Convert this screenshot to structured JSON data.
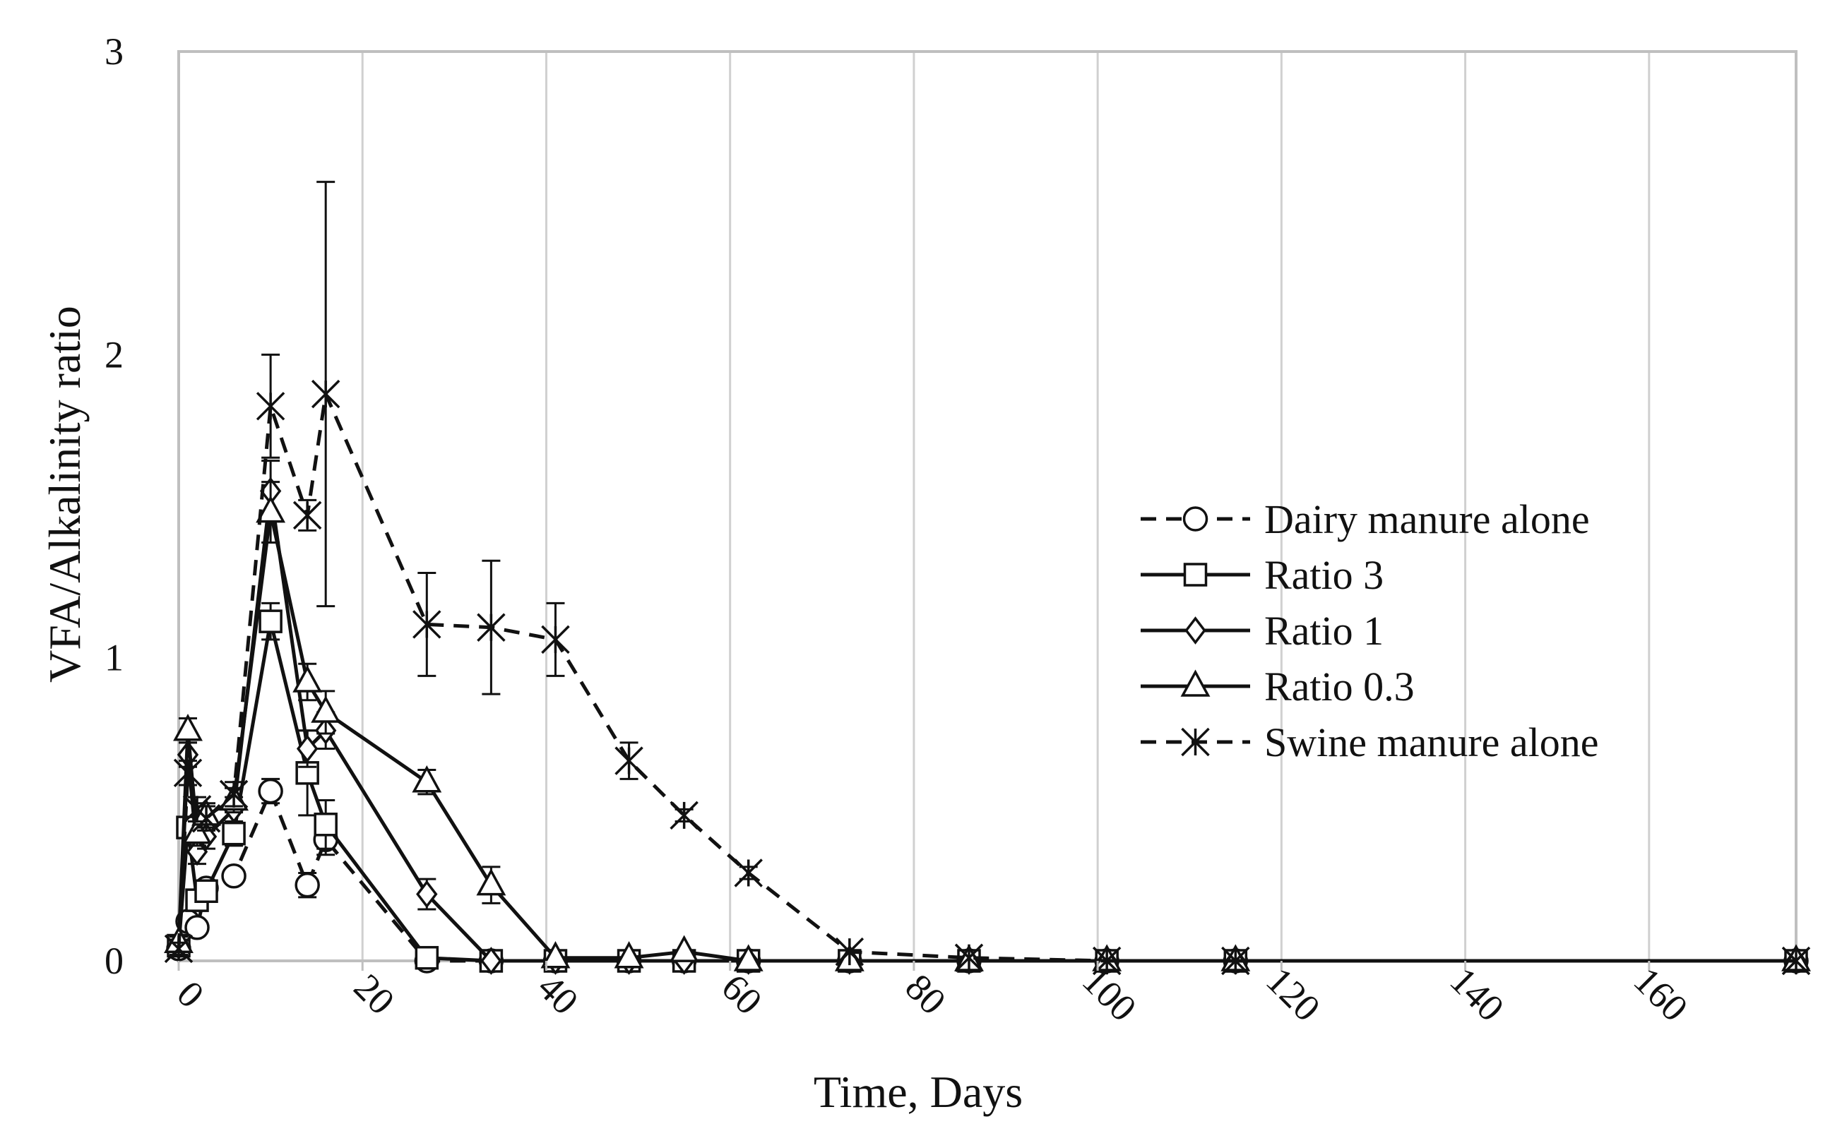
{
  "chart_data": {
    "type": "line",
    "title": "",
    "xlabel": "Time, Days",
    "ylabel": "VFA/Alkalinity ratio",
    "xlim": [
      0,
      176
    ],
    "ylim": [
      0,
      3
    ],
    "xticks": [
      0,
      20,
      40,
      60,
      80,
      100,
      120,
      140,
      160
    ],
    "xtick_labels": [
      "0",
      "20",
      "40",
      "60",
      "80",
      "100",
      "120",
      "140",
      "160"
    ],
    "yticks": [
      0,
      1,
      2,
      3
    ],
    "ytick_labels": [
      "0",
      "1",
      "2",
      "3"
    ],
    "grid": "vertical",
    "legend_position": "right",
    "series": [
      {
        "name": "Dairy manure alone",
        "marker": "circle",
        "dash": "dashed",
        "x": [
          0,
          1,
          2,
          3,
          6,
          10,
          14,
          16,
          27,
          34,
          41,
          49,
          55,
          62,
          73,
          86,
          101,
          115,
          176
        ],
        "y": [
          0.04,
          0.13,
          0.11,
          0.24,
          0.28,
          0.56,
          0.25,
          0.4,
          0.0,
          0.0,
          0.0,
          0.0,
          0.0,
          0.0,
          0.0,
          0.0,
          0.0,
          0.0,
          0.0
        ],
        "err": [
          0.02,
          0.02,
          0.02,
          0.02,
          0.02,
          0.04,
          0.04,
          0.05,
          0.01,
          0.01,
          0.01,
          0.01,
          0.01,
          0.01,
          0.01,
          0.01,
          0.01,
          0.01,
          0.01
        ]
      },
      {
        "name": "Ratio 3",
        "marker": "square",
        "dash": "solid",
        "x": [
          0,
          1,
          2,
          3,
          6,
          10,
          14,
          16,
          27,
          34,
          41,
          49,
          55,
          62,
          73,
          86,
          101,
          115,
          176
        ],
        "y": [
          0.05,
          0.44,
          0.2,
          0.23,
          0.42,
          1.12,
          0.62,
          0.45,
          0.01,
          0.0,
          0.0,
          0.0,
          0.0,
          0.0,
          0.0,
          0.0,
          0.0,
          0.0,
          0.0
        ],
        "err": [
          0.02,
          0.03,
          0.03,
          0.03,
          0.04,
          0.06,
          0.14,
          0.08,
          0.01,
          0.01,
          0.01,
          0.01,
          0.01,
          0.01,
          0.01,
          0.01,
          0.01,
          0.01,
          0.01
        ]
      },
      {
        "name": "Ratio 1",
        "marker": "diamond",
        "dash": "solid",
        "x": [
          0,
          1,
          2,
          3,
          6,
          10,
          14,
          16,
          27,
          34,
          41,
          49,
          55,
          62,
          73,
          86,
          101,
          115,
          176
        ],
        "y": [
          0.05,
          0.68,
          0.36,
          0.41,
          0.5,
          1.55,
          0.7,
          0.76,
          0.22,
          0.0,
          0.0,
          0.0,
          0.0,
          0.0,
          0.0,
          0.0,
          0.0,
          0.0,
          0.0
        ],
        "err": [
          0.02,
          0.04,
          0.04,
          0.04,
          0.04,
          0.1,
          0.06,
          0.06,
          0.05,
          0.01,
          0.01,
          0.01,
          0.01,
          0.01,
          0.01,
          0.01,
          0.01,
          0.01,
          0.01
        ]
      },
      {
        "name": "Ratio 0.3",
        "marker": "triangle",
        "dash": "solid",
        "x": [
          0,
          1,
          2,
          3,
          6,
          10,
          14,
          16,
          27,
          34,
          41,
          49,
          55,
          62,
          73,
          86,
          101,
          115,
          176
        ],
        "y": [
          0.06,
          0.76,
          0.42,
          0.48,
          0.53,
          1.48,
          0.92,
          0.82,
          0.59,
          0.25,
          0.01,
          0.01,
          0.03,
          0.0,
          0.0,
          0.0,
          0.0,
          0.0,
          0.0
        ],
        "err": [
          0.02,
          0.04,
          0.04,
          0.04,
          0.04,
          0.1,
          0.06,
          0.07,
          0.04,
          0.06,
          0.01,
          0.01,
          0.01,
          0.01,
          0.01,
          0.01,
          0.01,
          0.01,
          0.01
        ]
      },
      {
        "name": "Swine manure alone",
        "marker": "star",
        "dash": "dashed",
        "x": [
          0,
          1,
          2,
          3,
          6,
          10,
          14,
          16,
          27,
          34,
          41,
          49,
          55,
          62,
          73,
          86,
          101,
          115,
          176
        ],
        "y": [
          0.04,
          0.62,
          0.5,
          0.47,
          0.55,
          1.83,
          1.47,
          1.87,
          1.11,
          1.1,
          1.06,
          0.66,
          0.48,
          0.29,
          0.03,
          0.01,
          0.0,
          0.0,
          0.0
        ],
        "err": [
          0.02,
          0.04,
          0.04,
          0.04,
          0.04,
          0.17,
          0.05,
          0.7,
          0.17,
          0.22,
          0.12,
          0.06,
          0.02,
          0.02,
          0.01,
          0.01,
          0.01,
          0.01,
          0.01
        ]
      }
    ]
  }
}
